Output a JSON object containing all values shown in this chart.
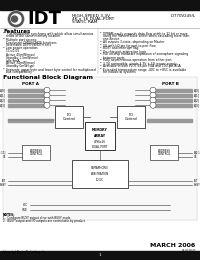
{
  "page_bg": "#ffffff",
  "title_bar_color": "#111111",
  "bottom_bar_color": "#111111",
  "logo_text": "IDT",
  "header_line1": "HIGH-SPEED 3.3V",
  "header_line2": "4K x 16 DUAL-PORT",
  "header_line3": "STATIC RAM",
  "part_number": "IDT70V24S/L",
  "features_title": "Features",
  "diagram_title": "Functional Block Diagram",
  "footer_date": "MARCH 2006",
  "footer_company": "Integrated Device Technology, Inc.",
  "footer_doc": "DS-0318-01",
  "note1": "NOTES:",
  "note2": "1.  Configure BUSY output drive with BUSY mode",
  "note3": "2.  BUSY output and I/O outputs are controllable by product"
}
